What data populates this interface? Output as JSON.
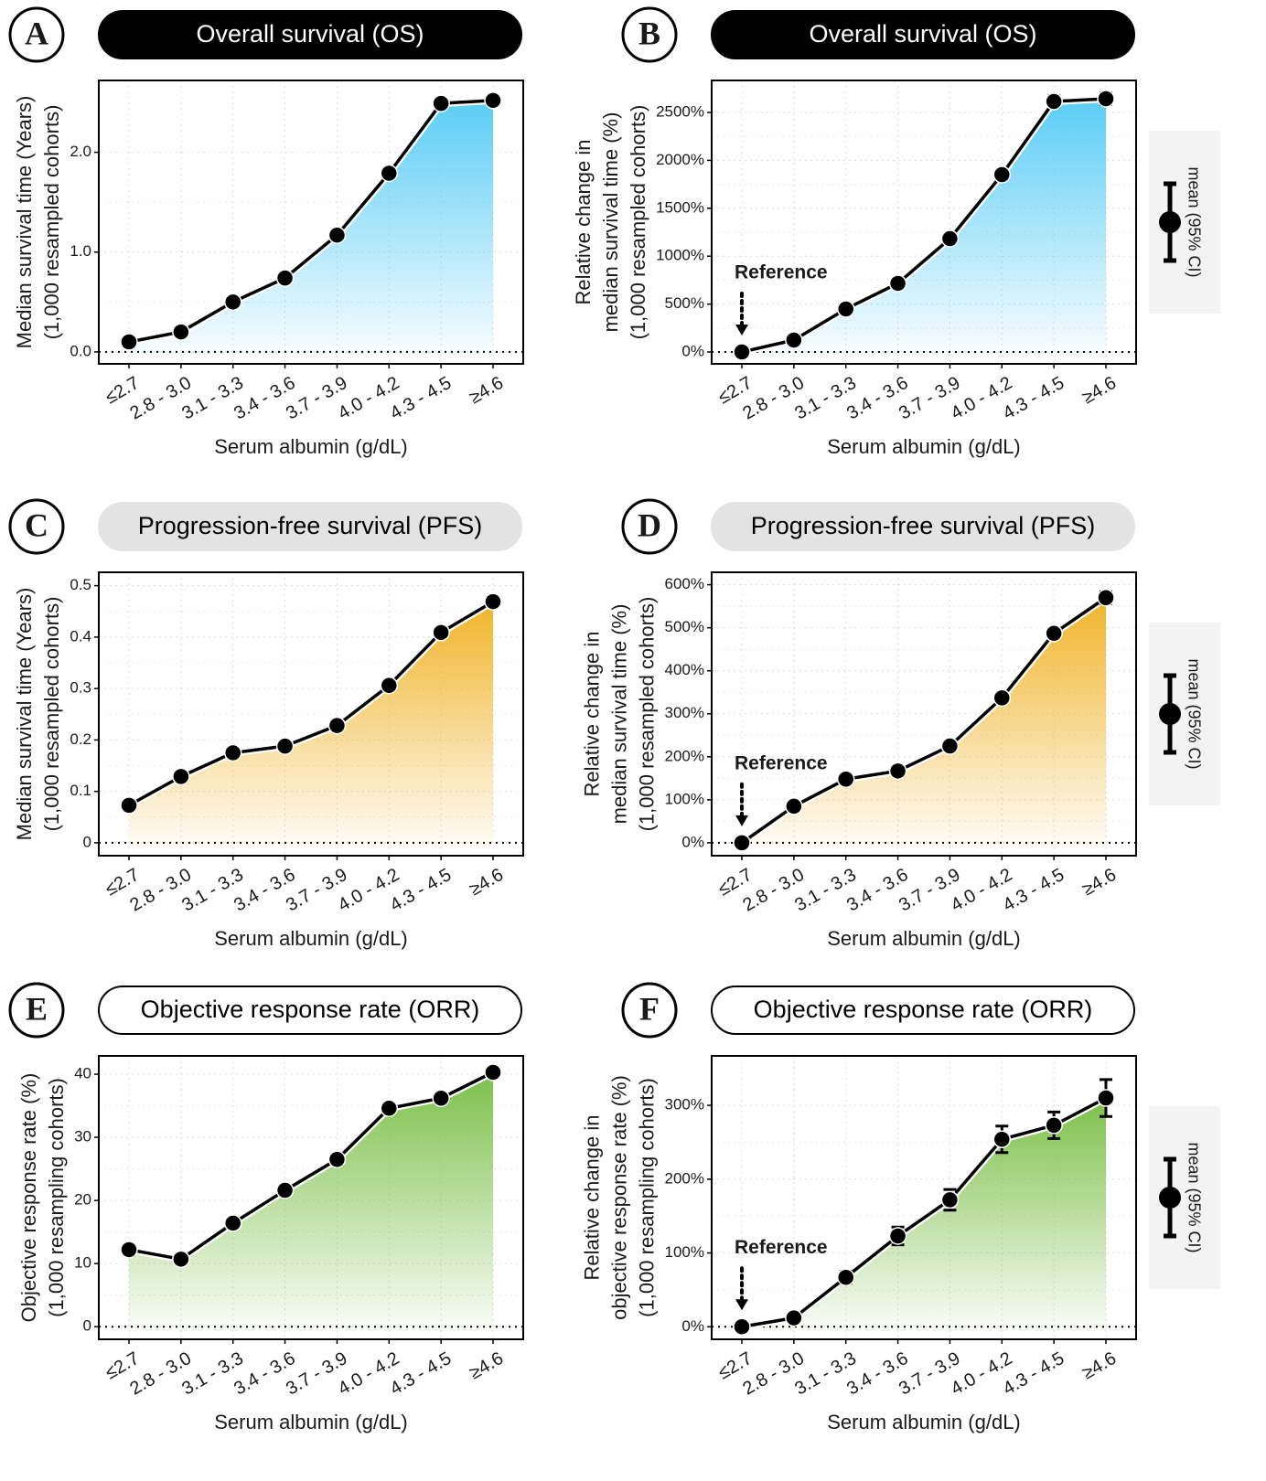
{
  "chart_data": [
    {
      "type": "line",
      "panel": "A",
      "title": "Overall survival (OS)",
      "title_box": {
        "fill": "#000000",
        "stroke": "#000000",
        "text": "#ffffff"
      },
      "xlabel": "Serum albumin (g/dL)",
      "ylabel": [
        "Median survival time  (Years)",
        "(1,000 resampled cohorts)"
      ],
      "categories": [
        "≤2.7",
        "2.8 - 3.0",
        "3.1 - 3.3",
        "3.4 - 3.6",
        "3.7 - 3.9",
        "4.0 - 4.2",
        "4.3 - 4.5",
        "≥4.6"
      ],
      "values": [
        0.1,
        0.2,
        0.5,
        0.74,
        1.17,
        1.79,
        2.49,
        2.52
      ],
      "errors": [
        0.02,
        0.02,
        0.02,
        0.02,
        0.02,
        0.03,
        0.04,
        0.04
      ],
      "color": "#5bcdf5",
      "ylim": [
        -0.12,
        2.72
      ],
      "yticks": [
        {
          "value": 0,
          "label": "0.0"
        },
        {
          "value": 1,
          "label": "1.0"
        },
        {
          "value": 2,
          "label": "2.0"
        }
      ],
      "grid": true
    },
    {
      "type": "line",
      "panel": "B",
      "title": "Overall survival (OS)",
      "title_box": {
        "fill": "#000000",
        "stroke": "#000000",
        "text": "#ffffff"
      },
      "xlabel": "Serum albumin (g/dL)",
      "ylabel": [
        "Relative change in",
        "median survival time  (%)",
        "(1,000 resampled cohorts)"
      ],
      "categories": [
        "≤2.7",
        "2.8 - 3.0",
        "3.1 - 3.3",
        "3.4 - 3.6",
        "3.7 - 3.9",
        "4.0 - 4.2",
        "4.3 - 4.5",
        "≥4.6"
      ],
      "values": [
        0,
        124,
        449,
        716,
        1183,
        1851,
        2615,
        2643
      ],
      "errors": [
        0,
        20,
        25,
        30,
        35,
        45,
        60,
        60
      ],
      "color": "#5bcdf5",
      "ylim": [
        -124,
        2834
      ],
      "yticks": [
        {
          "value": 0,
          "label": "0%"
        },
        {
          "value": 500,
          "label": "500%"
        },
        {
          "value": 1000,
          "label": "1000%"
        },
        {
          "value": 1500,
          "label": "1500%"
        },
        {
          "value": 2000,
          "label": "2000%"
        },
        {
          "value": 2500,
          "label": "2500%"
        }
      ],
      "grid": true,
      "annotation": "Reference",
      "legend": "mean (95% CI)"
    },
    {
      "type": "line",
      "panel": "C",
      "title": "Progression-free survival (PFS)",
      "title_box": {
        "fill": "#e3e3e3",
        "stroke": "#e3e3e3",
        "text": "#000000"
      },
      "xlabel": "Serum albumin (g/dL)",
      "ylabel": [
        "Median survival time  (Years)",
        "(1,000 resampled cohorts)"
      ],
      "categories": [
        "≤2.7",
        "2.8 - 3.0",
        "3.1 - 3.3",
        "3.4 - 3.6",
        "3.7 - 3.9",
        "4.0 - 4.2",
        "4.3 - 4.5",
        "≥4.6"
      ],
      "values": [
        0.073,
        0.129,
        0.175,
        0.188,
        0.228,
        0.306,
        0.409,
        0.469
      ],
      "errors": [
        0.003,
        0.003,
        0.003,
        0.003,
        0.004,
        0.005,
        0.006,
        0.01
      ],
      "color": "#f0b429",
      "ylim": [
        -0.025,
        0.526
      ],
      "yticks": [
        0,
        0.1,
        0.2,
        0.3,
        0.4,
        0.5
      ],
      "grid": true
    },
    {
      "type": "line",
      "panel": "D",
      "title": "Progression-free survival (PFS)",
      "title_box": {
        "fill": "#e3e3e3",
        "stroke": "#e3e3e3",
        "text": "#000000"
      },
      "xlabel": "Serum albumin (g/dL)",
      "ylabel": [
        "Relative change in",
        "median survival time  (%)",
        "(1,000 resampled cohorts)"
      ],
      "categories": [
        "≤2.7",
        "2.8 - 3.0",
        "3.1 - 3.3",
        "3.4 - 3.6",
        "3.7 - 3.9",
        "4.0 - 4.2",
        "4.3 - 4.5",
        "≥4.6"
      ],
      "values": [
        0,
        85,
        148,
        167,
        225,
        337,
        487,
        570
      ],
      "errors": [
        0,
        5,
        5,
        5,
        7,
        9,
        11,
        14
      ],
      "color": "#f0b429",
      "ylim": [
        -30,
        629
      ],
      "yticks": [
        {
          "value": 0,
          "label": "0%"
        },
        {
          "value": 100,
          "label": "100%"
        },
        {
          "value": 200,
          "label": "200%"
        },
        {
          "value": 300,
          "label": "300%"
        },
        {
          "value": 400,
          "label": "400%"
        },
        {
          "value": 500,
          "label": "500%"
        },
        {
          "value": 600,
          "label": "600%"
        }
      ],
      "grid": true,
      "annotation": "Reference",
      "legend": "mean (95% CI)"
    },
    {
      "type": "line",
      "panel": "E",
      "title": "Objective response rate (ORR)",
      "title_box": {
        "fill": "#ffffff",
        "stroke": "#000000",
        "text": "#000000"
      },
      "xlabel": "Serum albumin (g/dL)",
      "ylabel": [
        "Objective response rate (%)",
        "(1,000 resampling cohorts)"
      ],
      "categories": [
        "≤2.7",
        "2.8 - 3.0",
        "3.1 - 3.3",
        "3.4 - 3.6",
        "3.7 - 3.9",
        "4.0 - 4.2",
        "4.3 - 4.5",
        "≥4.6"
      ],
      "values": [
        12.2,
        10.7,
        16.4,
        21.6,
        26.5,
        34.6,
        36.2,
        40.3
      ],
      "errors": [
        0.3,
        0.3,
        0.3,
        0.3,
        0.4,
        0.4,
        0.4,
        0.5
      ],
      "color": "#7dc04a",
      "ylim": [
        -2.0,
        42.9
      ],
      "yticks": [
        0,
        10,
        20,
        30,
        40
      ],
      "grid": true
    },
    {
      "type": "line",
      "panel": "F",
      "title": "Objective response rate (ORR)",
      "title_box": {
        "fill": "#ffffff",
        "stroke": "#000000",
        "text": "#000000"
      },
      "xlabel": "Serum albumin (g/dL)",
      "ylabel": [
        "Relative change in",
        "objective response rate (%)",
        "(1,000 resampling cohorts)"
      ],
      "categories": [
        "≤2.7",
        "2.8 - 3.0",
        "3.1 - 3.3",
        "3.4 - 3.6",
        "3.7 - 3.9",
        "4.0 - 4.2",
        "4.3 - 4.5",
        "≥4.6"
      ],
      "values": [
        0,
        12,
        67,
        123,
        172,
        254,
        273,
        310
      ],
      "errors": [
        0,
        5,
        8,
        12,
        14,
        18,
        18,
        25
      ],
      "color": "#7dc04a",
      "ylim": [
        -17,
        367
      ],
      "yticks": [
        {
          "value": 0,
          "label": "0%"
        },
        {
          "value": 100,
          "label": "100%"
        },
        {
          "value": 200,
          "label": "200%"
        },
        {
          "value": 300,
          "label": "300%"
        }
      ],
      "grid": true,
      "annotation": "Reference",
      "legend": "mean (95% CI)"
    }
  ]
}
